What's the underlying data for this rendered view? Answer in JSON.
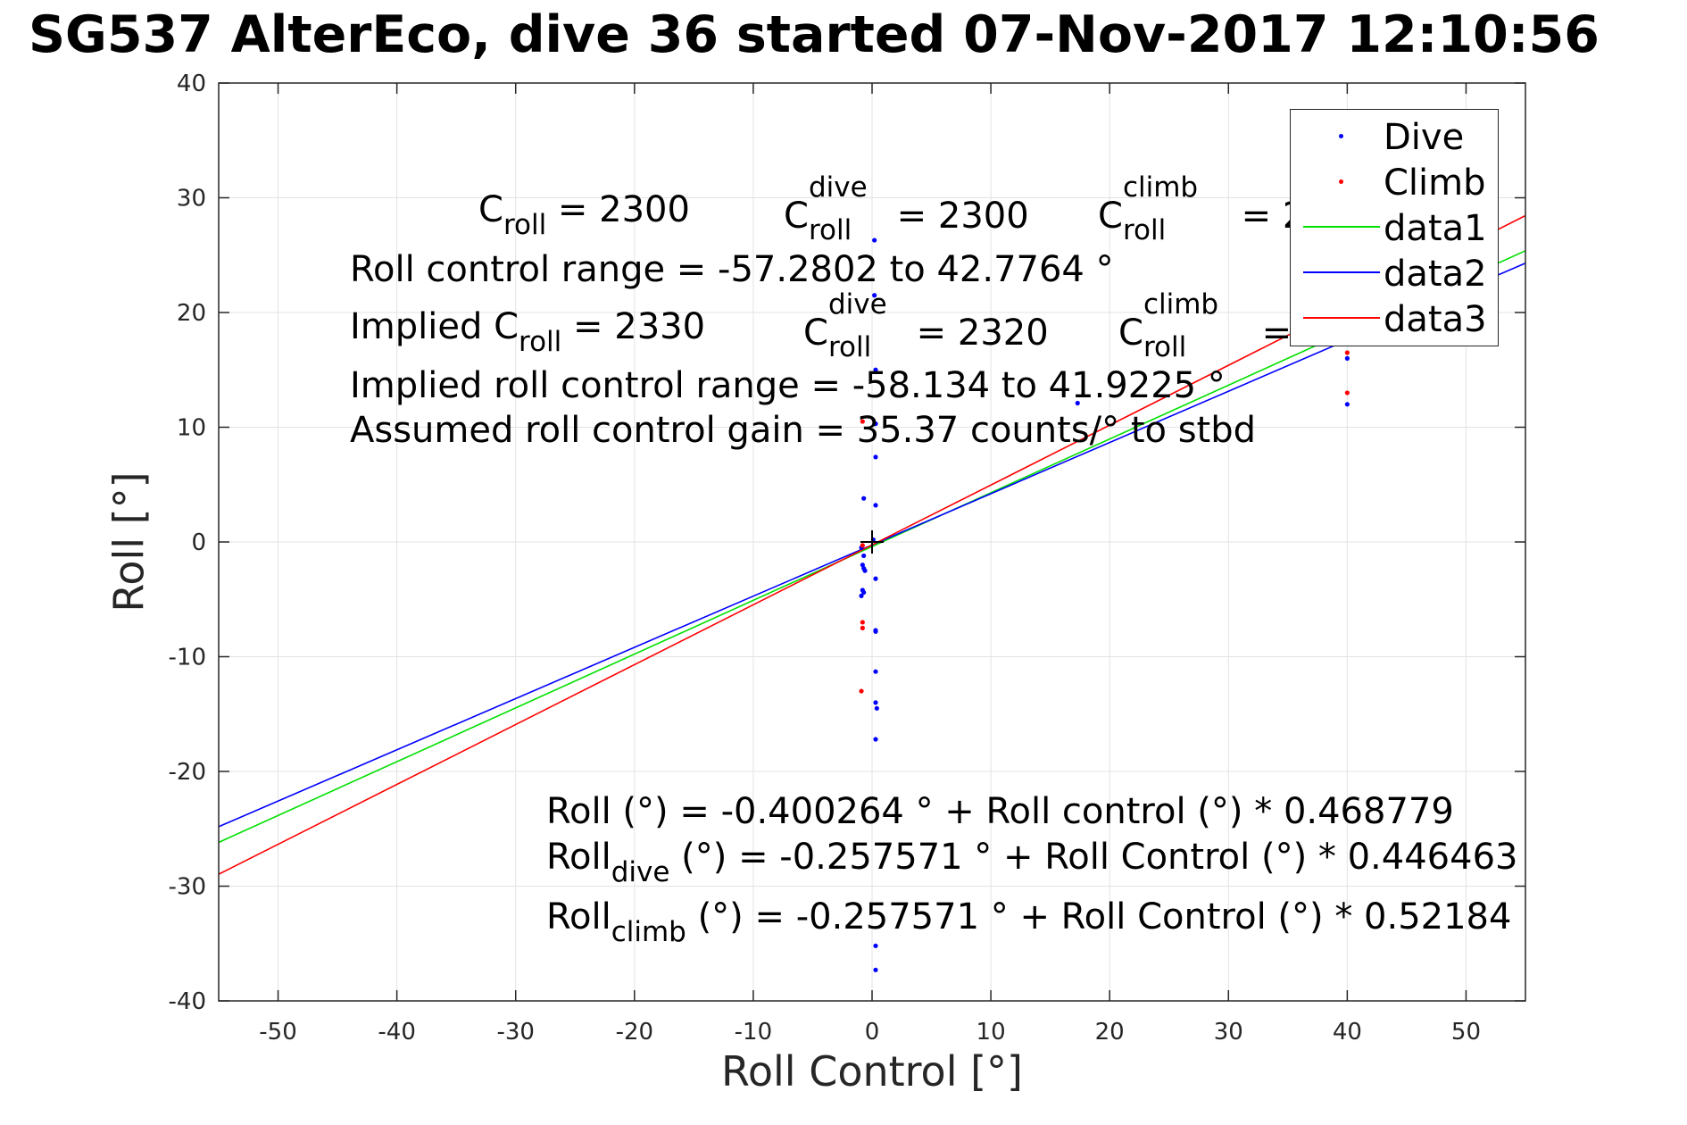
{
  "title": "SG537 AlterEco, dive 36 started 07-Nov-2017 12:10:56",
  "chart_data": {
    "type": "scatter",
    "xlabel": "Roll Control [°]",
    "ylabel": "Roll [°]",
    "xlim": [
      -55,
      55
    ],
    "ylim": [
      -40,
      40
    ],
    "xticks": [
      -50,
      -40,
      -30,
      -20,
      -10,
      0,
      10,
      20,
      30,
      40,
      50
    ],
    "yticks": [
      -40,
      -30,
      -20,
      -10,
      0,
      10,
      20,
      30,
      40
    ],
    "grid": true,
    "legend_position": "top-right",
    "series": [
      {
        "name": "Dive",
        "kind": "points",
        "color": "#0000ff",
        "points": [
          [
            0.2,
            26.3
          ],
          [
            0.2,
            21.5
          ],
          [
            0.3,
            15
          ],
          [
            0.3,
            10.3
          ],
          [
            0.3,
            7.4
          ],
          [
            -0.7,
            3.8
          ],
          [
            0.3,
            3.2
          ],
          [
            0.1,
            0.2
          ],
          [
            -0.9,
            -0.5
          ],
          [
            -0.7,
            -1.2
          ],
          [
            -0.8,
            -2
          ],
          [
            -0.7,
            -2.3
          ],
          [
            -0.6,
            -2.5
          ],
          [
            0.3,
            -3.2
          ],
          [
            -0.8,
            -4.2
          ],
          [
            -0.7,
            -4.4
          ],
          [
            -0.9,
            -4.7
          ],
          [
            0.3,
            -7.7
          ],
          [
            0.3,
            -7.8
          ],
          [
            0.3,
            -11.3
          ],
          [
            0.3,
            -14
          ],
          [
            0.4,
            -14.5
          ],
          [
            0.3,
            -17.2
          ],
          [
            0.3,
            -35.2
          ],
          [
            0.3,
            -37.3
          ],
          [
            17.3,
            12.1
          ],
          [
            40,
            16
          ],
          [
            40,
            12
          ]
        ]
      },
      {
        "name": "Climb",
        "kind": "points",
        "color": "#ff0000",
        "points": [
          [
            -0.8,
            10.5
          ],
          [
            -0.8,
            -0.3
          ],
          [
            -0.8,
            -7
          ],
          [
            -0.8,
            -7.5
          ],
          [
            -0.9,
            -13
          ],
          [
            40,
            16.5
          ],
          [
            40,
            13
          ]
        ]
      },
      {
        "name": "data1",
        "kind": "line",
        "color": "#00e000",
        "x": [
          -55,
          55
        ],
        "y": [
          -26.184,
          25.383
        ]
      },
      {
        "name": "data2",
        "kind": "line",
        "color": "#0000ff",
        "x": [
          -55,
          55
        ],
        "y": [
          -24.813,
          24.298
        ]
      },
      {
        "name": "data3",
        "kind": "line",
        "color": "#ff0000",
        "x": [
          -55,
          55
        ],
        "y": [
          -28.959,
          28.444
        ]
      }
    ],
    "center_marker": [
      0,
      0
    ]
  },
  "annotations": {
    "c_roll": "C",
    "c_roll_sub": "roll",
    "c_roll_val": " = 2300",
    "c_dive_sup": "dive",
    "c_dive_sub": "roll",
    "c_dive_val": " = 2300",
    "c_climb_sup": "climb",
    "c_climb_sub": "roll",
    "c_climb_val": " = 2",
    "range": "Roll control range = -57.2802 to 42.7764 °",
    "implied_c_prefix": "Implied C",
    "implied_c_sub": "roll",
    "implied_c_val": " = 2330",
    "implied_dive_sup": "dive",
    "implied_dive_sub": "roll",
    "implied_dive_val": " = 2320",
    "implied_climb_sup": "climb",
    "implied_climb_sub": "roll",
    "implied_climb_val": " = 2",
    "implied_range": "Implied roll control range = -58.134 to 41.9225 °",
    "gain": "Assumed roll control gain = 35.37 counts/° to stbd",
    "eq1": "Roll (°) = -0.400264 ° + Roll control (°) * 0.468779",
    "eq2_prefix": "Roll",
    "eq2_sub": "dive",
    "eq2_rest": " (°) = -0.257571 ° + Roll Control (°) * 0.446463",
    "eq3_prefix": "Roll",
    "eq3_sub": "climb",
    "eq3_rest": " (°) = -0.257571 ° + Roll Control (°) * 0.52184"
  },
  "legend": {
    "items": [
      {
        "label": "Dive",
        "color": "#0000ff",
        "type": "dot"
      },
      {
        "label": "Climb",
        "color": "#ff0000",
        "type": "dot"
      },
      {
        "label": "data1",
        "color": "#00e000",
        "type": "line"
      },
      {
        "label": "data2",
        "color": "#0000ff",
        "type": "line"
      },
      {
        "label": "data3",
        "color": "#ff0000",
        "type": "line"
      }
    ]
  }
}
